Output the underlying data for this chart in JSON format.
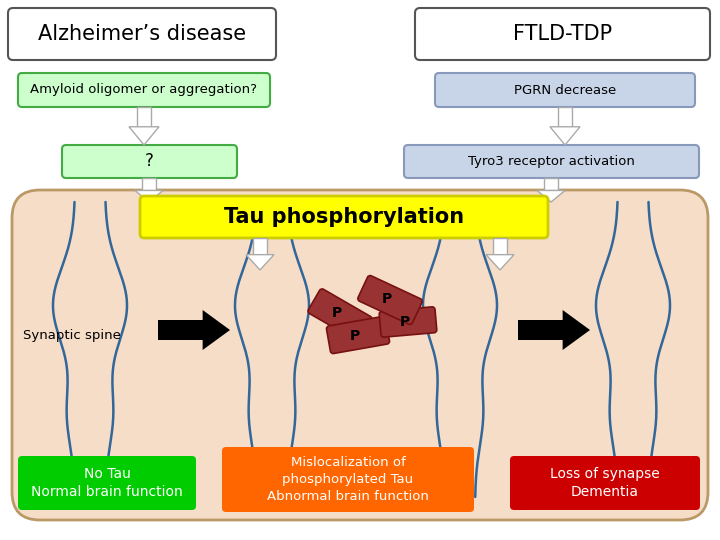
{
  "bg_color": "#ffffff",
  "title_left": "Alzheimer’s disease",
  "title_right": "FTLD-TDP",
  "box_amyloid": "Amyloid oligomer or aggregation?",
  "box_pgrn": "PGRN decrease",
  "box_question": "?",
  "box_tyro3": "Tyro3 receptor activation",
  "box_tau": "Tau phosphorylation",
  "box_no_tau": "No Tau\nNormal brain function",
  "box_misloc": "Mislocalization of\nphosphorylated Tau\nAbnormal brain function",
  "box_loss": "Loss of synapse\nDementia",
  "label_synaptic": "Synaptic spine",
  "color_amyloid_box_bg": "#ccffcc",
  "color_amyloid_box_border": "#44aa44",
  "color_pgrn_box_bg": "#c8d4e8",
  "color_pgrn_box_border": "#8899bb",
  "color_question_box_bg": "#ccffcc",
  "color_question_box_border": "#44aa44",
  "color_tyro3_box_bg": "#c8d4e8",
  "color_tyro3_box_border": "#8899bb",
  "color_tau_box_bg": "#ffff00",
  "color_no_tau_bg": "#00cc00",
  "color_misloc_bg": "#ff6600",
  "color_loss_bg": "#cc0000",
  "color_main_bg": "#f5ddc8",
  "color_main_border": "#bb9966",
  "color_spine": "#336699",
  "color_tau_protein": "#993333",
  "color_tau_protein_light": "#cc6666"
}
